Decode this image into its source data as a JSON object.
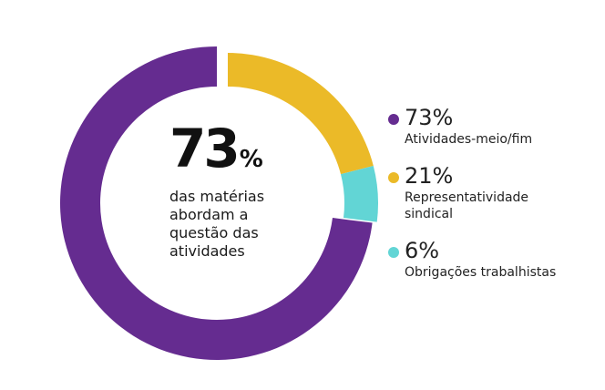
{
  "headline": {
    "value": "73",
    "unit": "%",
    "description": "das matérias abordam a questão das atividades"
  },
  "chart_data": {
    "type": "pie",
    "donut": true,
    "categories": [
      "Atividades-meio/fim",
      "Representatividade sindical",
      "Obrigações trabalhistas"
    ],
    "values": [
      73,
      21,
      6
    ],
    "value_labels": [
      "73%",
      "21%",
      "6%"
    ],
    "colors": [
      "#652c90",
      "#ebba28",
      "#62d5d5"
    ],
    "legend_placement": "right"
  }
}
